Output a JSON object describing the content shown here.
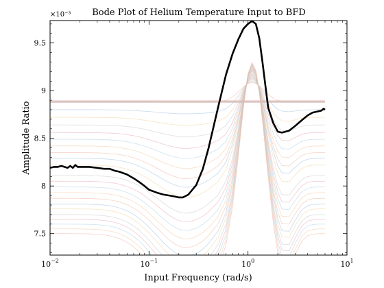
{
  "chart_data": {
    "type": "line",
    "title": "Bode Plot of Helium Temperature Input to BFD",
    "xlabel": "Input Frequency (rad/s)",
    "ylabel": "Amplitude Ratio",
    "x_scale": "log",
    "xlim": [
      0.01,
      10
    ],
    "ylim": [
      0.007275,
      0.009735
    ],
    "y_multiplier_label": "×10⁻³",
    "x_ticks": [
      {
        "value": 0.01,
        "base": "10",
        "exp": "−2"
      },
      {
        "value": 0.1,
        "base": "10",
        "exp": "−1"
      },
      {
        "value": 1,
        "base": "10",
        "exp": "0"
      },
      {
        "value": 10,
        "base": "10",
        "exp": "1"
      }
    ],
    "y_ticks": [
      {
        "value": 0.0075,
        "label": "7.5"
      },
      {
        "value": 0.008,
        "label": "8"
      },
      {
        "value": 0.0085,
        "label": "8.5"
      },
      {
        "value": 0.009,
        "label": "9"
      },
      {
        "value": 0.0095,
        "label": "9.5"
      }
    ],
    "grid": false,
    "highlight_series": {
      "color": "#000000",
      "points": [
        [
          0.01,
          0.00819
        ],
        [
          0.011,
          0.0082
        ],
        [
          0.012,
          0.0082
        ],
        [
          0.013,
          0.00821
        ],
        [
          0.014,
          0.0082
        ],
        [
          0.015,
          0.00819
        ],
        [
          0.016,
          0.00821
        ],
        [
          0.017,
          0.00819
        ],
        [
          0.018,
          0.00822
        ],
        [
          0.019,
          0.0082
        ],
        [
          0.02,
          0.0082
        ],
        [
          0.025,
          0.0082
        ],
        [
          0.03,
          0.00819
        ],
        [
          0.035,
          0.00818
        ],
        [
          0.04,
          0.00818
        ],
        [
          0.045,
          0.00816
        ],
        [
          0.05,
          0.00815
        ],
        [
          0.06,
          0.00812
        ],
        [
          0.07,
          0.00808
        ],
        [
          0.08,
          0.00804
        ],
        [
          0.09,
          0.008
        ],
        [
          0.1,
          0.00796
        ],
        [
          0.12,
          0.00793
        ],
        [
          0.14,
          0.00791
        ],
        [
          0.16,
          0.0079
        ],
        [
          0.18,
          0.00789
        ],
        [
          0.2,
          0.00788
        ],
        [
          0.22,
          0.00788
        ],
        [
          0.25,
          0.00791
        ],
        [
          0.3,
          0.00801
        ],
        [
          0.35,
          0.00818
        ],
        [
          0.4,
          0.0084
        ],
        [
          0.5,
          0.00883
        ],
        [
          0.6,
          0.00917
        ],
        [
          0.7,
          0.00939
        ],
        [
          0.8,
          0.00954
        ],
        [
          0.9,
          0.00965
        ],
        [
          1.0,
          0.0097
        ],
        [
          1.1,
          0.00973
        ],
        [
          1.2,
          0.0097
        ],
        [
          1.3,
          0.00955
        ],
        [
          1.4,
          0.0093
        ],
        [
          1.5,
          0.00905
        ],
        [
          1.6,
          0.00882
        ],
        [
          1.8,
          0.00866
        ],
        [
          2.0,
          0.00857
        ],
        [
          2.2,
          0.00856
        ],
        [
          2.6,
          0.00858
        ],
        [
          3.0,
          0.00863
        ],
        [
          3.5,
          0.00869
        ],
        [
          4.0,
          0.00874
        ],
        [
          4.5,
          0.00877
        ],
        [
          5.0,
          0.00878
        ],
        [
          5.5,
          0.00879
        ],
        [
          5.8,
          0.00881
        ],
        [
          6.0,
          0.0088
        ]
      ]
    },
    "background_family": {
      "colors": [
        "#f0b7a4",
        "#9cc3e4",
        "#f4d29a",
        "#c9c9c9",
        "#e8a9b0",
        "#a9d1e8",
        "#f3c9a0"
      ],
      "opacity": 0.55,
      "flat_level": 0.008885,
      "baselines": [
        0.00888,
        0.0088,
        0.00872,
        0.00864,
        0.00856,
        0.00849,
        0.00842,
        0.00835,
        0.00829,
        0.00822,
        0.00811,
        0.00805,
        0.00799,
        0.00793,
        0.00787,
        0.00781,
        0.00776,
        0.0077,
        0.00765,
        0.0076,
        0.00755,
        0.0075
      ]
    }
  }
}
